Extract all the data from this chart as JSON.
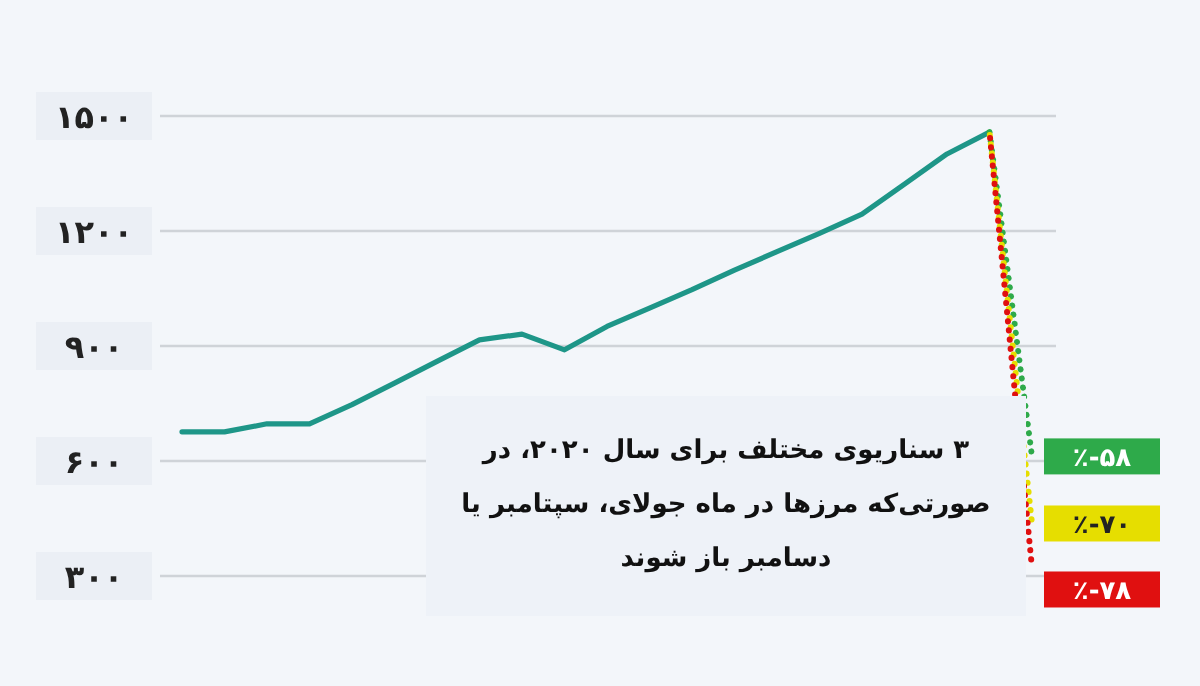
{
  "chart_data": {
    "type": "line",
    "categories": [
      null,
      null,
      null,
      null,
      null,
      null,
      null,
      null,
      null,
      null,
      null,
      null,
      null,
      null,
      null,
      null,
      null,
      null,
      null,
      null,
      null
    ],
    "series": [
      {
        "color": "#1e9688",
        "values": [
          676,
          676,
          697,
          697,
          747,
          803,
          860,
          916,
          931,
          890,
          951,
          999,
          1047,
          1098,
          1146,
          1194,
          1244,
          1322,
          1401,
          1458,
          null
        ]
      },
      {
        "name": "٪-۵۸",
        "color": "#2eaa4a",
        "line_style": "dotted",
        "values": [
          null,
          null,
          null,
          null,
          null,
          null,
          null,
          null,
          null,
          null,
          null,
          null,
          null,
          null,
          null,
          null,
          null,
          null,
          null,
          1458,
          612
        ]
      },
      {
        "name": "٪-۷۰",
        "color": "#e6de00",
        "line_style": "dotted",
        "values": [
          null,
          null,
          null,
          null,
          null,
          null,
          null,
          null,
          null,
          null,
          null,
          null,
          null,
          null,
          null,
          null,
          null,
          null,
          null,
          1458,
          437
        ]
      },
      {
        "name": "٪-۷۸",
        "color": "#e01010",
        "line_style": "dotted",
        "values": [
          null,
          null,
          null,
          null,
          null,
          null,
          null,
          null,
          null,
          null,
          null,
          null,
          null,
          null,
          null,
          null,
          null,
          null,
          null,
          1458,
          321
        ]
      }
    ],
    "ylim": [
      300,
      1500
    ],
    "yticks": [
      {
        "value": 300,
        "label": "۳۰۰"
      },
      {
        "value": 600,
        "label": "۶۰۰"
      },
      {
        "value": 900,
        "label": "۹۰۰"
      },
      {
        "value": 1200,
        "label": "۱۲۰۰"
      },
      {
        "value": 1500,
        "label": "۱۵۰۰"
      }
    ],
    "grid": "y",
    "tick_labels": "y",
    "legend": "right",
    "annotations": [
      "۳ سناریوی مختلف برای سال ۲۰۲۰، در صورتی‌که مرزها در ماه جولای، سپتامبر یا دسامبر باز شوند"
    ]
  }
}
